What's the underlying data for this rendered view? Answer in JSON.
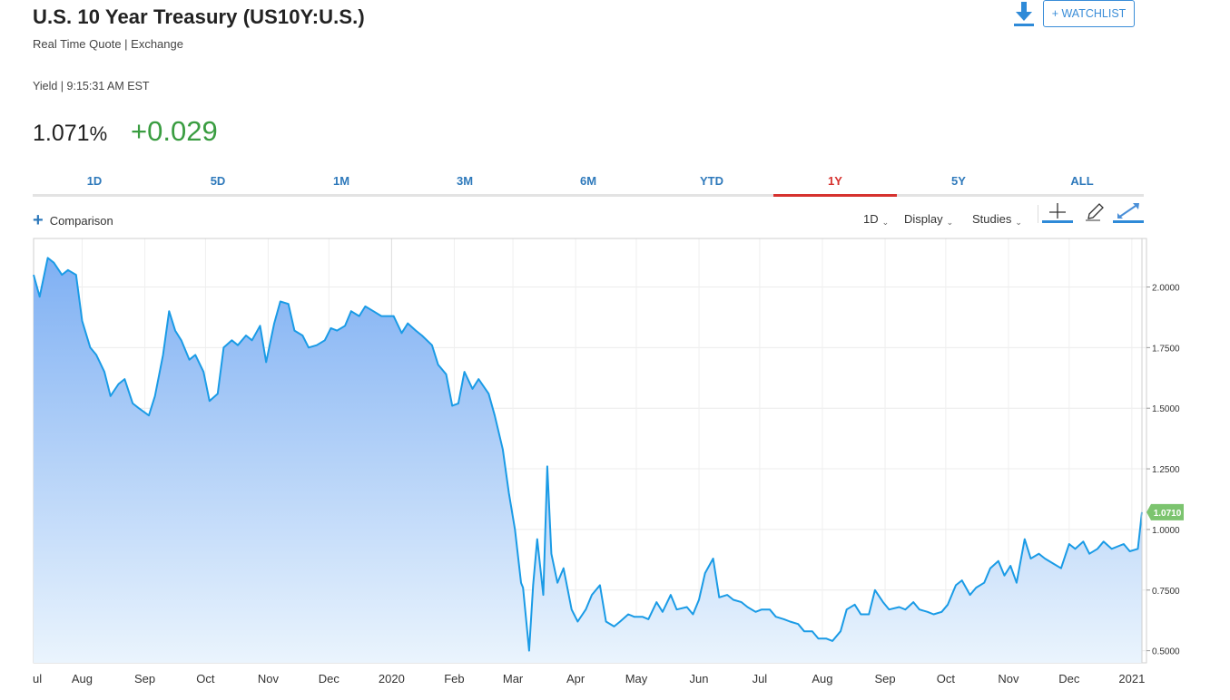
{
  "header": {
    "title": "U.S. 10 Year Treasury (US10Y:U.S.)",
    "subtitle": "Real Time Quote | Exchange",
    "yield_time": "Yield | 9:15:31 AM EST",
    "price": "1.071",
    "price_unit": "%",
    "change": "+0.029",
    "watchlist_label": "+ WATCHLIST",
    "download_icon": "download-icon"
  },
  "tabs": [
    {
      "label": "1D",
      "active": false
    },
    {
      "label": "5D",
      "active": false
    },
    {
      "label": "1M",
      "active": false
    },
    {
      "label": "3M",
      "active": false
    },
    {
      "label": "6M",
      "active": false
    },
    {
      "label": "YTD",
      "active": false
    },
    {
      "label": "1Y",
      "active": true
    },
    {
      "label": "5Y",
      "active": false
    },
    {
      "label": "ALL",
      "active": false
    }
  ],
  "toolbar": {
    "comparison_label": "Comparison",
    "interval_label": "1D",
    "display_label": "Display",
    "studies_label": "Studies",
    "crosshair_icon": "crosshair-icon",
    "draw_icon": "pencil-icon",
    "expand_icon": "expand-icon"
  },
  "colors": {
    "line": "#1a9be6",
    "area_top": "#7fb0f3",
    "area_bottom": "#eaf4fd",
    "last_price_badge": "#7cc46f",
    "change_positive": "#3a9d41",
    "tab_active": "#d6322f",
    "tab_default": "#2e79bb"
  },
  "chart_data": {
    "type": "area",
    "title": "",
    "xlabel": "",
    "ylabel": "",
    "ylim": [
      0.45,
      2.2
    ],
    "y_ticks": [
      "2.0000",
      "1.7500",
      "1.5000",
      "1.2500",
      "1.0000",
      "0.7500",
      "0.5000"
    ],
    "x_tick_labels": [
      "Jul",
      "Aug",
      "Sep",
      "Oct",
      "Nov",
      "Dec",
      "2020",
      "Feb",
      "Mar",
      "Apr",
      "May",
      "Jun",
      "Jul",
      "Aug",
      "Sep",
      "Oct",
      "Nov",
      "Dec",
      "2021"
    ],
    "grid": true,
    "last_price_label": "1.0710",
    "series": [
      {
        "name": "US10Y",
        "x": [
          "2019-07-08",
          "2019-07-11",
          "2019-07-15",
          "2019-07-18",
          "2019-07-22",
          "2019-07-25",
          "2019-07-29",
          "2019-08-01",
          "2019-08-05",
          "2019-08-08",
          "2019-08-12",
          "2019-08-15",
          "2019-08-19",
          "2019-08-22",
          "2019-08-26",
          "2019-08-29",
          "2019-09-03",
          "2019-09-06",
          "2019-09-10",
          "2019-09-13",
          "2019-09-16",
          "2019-09-19",
          "2019-09-23",
          "2019-09-26",
          "2019-09-30",
          "2019-10-03",
          "2019-10-07",
          "2019-10-10",
          "2019-10-14",
          "2019-10-17",
          "2019-10-21",
          "2019-10-24",
          "2019-10-28",
          "2019-10-31",
          "2019-11-04",
          "2019-11-07",
          "2019-11-11",
          "2019-11-14",
          "2019-11-18",
          "2019-11-21",
          "2019-11-25",
          "2019-11-29",
          "2019-12-02",
          "2019-12-05",
          "2019-12-09",
          "2019-12-12",
          "2019-12-16",
          "2019-12-19",
          "2019-12-23",
          "2019-12-27",
          "2020-01-02",
          "2020-01-06",
          "2020-01-09",
          "2020-01-13",
          "2020-01-16",
          "2020-01-21",
          "2020-01-24",
          "2020-01-28",
          "2020-01-31",
          "2020-02-03",
          "2020-02-06",
          "2020-02-10",
          "2020-02-13",
          "2020-02-18",
          "2020-02-21",
          "2020-02-25",
          "2020-02-28",
          "2020-03-02",
          "2020-03-05",
          "2020-03-06",
          "2020-03-09",
          "2020-03-11",
          "2020-03-13",
          "2020-03-16",
          "2020-03-18",
          "2020-03-20",
          "2020-03-23",
          "2020-03-26",
          "2020-03-30",
          "2020-04-02",
          "2020-04-06",
          "2020-04-09",
          "2020-04-13",
          "2020-04-16",
          "2020-04-20",
          "2020-04-23",
          "2020-04-27",
          "2020-04-30",
          "2020-05-04",
          "2020-05-07",
          "2020-05-11",
          "2020-05-14",
          "2020-05-18",
          "2020-05-21",
          "2020-05-26",
          "2020-05-29",
          "2020-06-01",
          "2020-06-04",
          "2020-06-08",
          "2020-06-11",
          "2020-06-15",
          "2020-06-18",
          "2020-06-22",
          "2020-06-25",
          "2020-06-29",
          "2020-07-02",
          "2020-07-06",
          "2020-07-09",
          "2020-07-13",
          "2020-07-16",
          "2020-07-20",
          "2020-07-23",
          "2020-07-27",
          "2020-07-30",
          "2020-08-03",
          "2020-08-06",
          "2020-08-10",
          "2020-08-13",
          "2020-08-17",
          "2020-08-20",
          "2020-08-24",
          "2020-08-27",
          "2020-08-31",
          "2020-09-03",
          "2020-09-08",
          "2020-09-11",
          "2020-09-15",
          "2020-09-18",
          "2020-09-22",
          "2020-09-25",
          "2020-09-29",
          "2020-10-02",
          "2020-10-06",
          "2020-10-09",
          "2020-10-13",
          "2020-10-16",
          "2020-10-20",
          "2020-10-23",
          "2020-10-27",
          "2020-10-30",
          "2020-11-02",
          "2020-11-05",
          "2020-11-09",
          "2020-11-12",
          "2020-11-16",
          "2020-11-19",
          "2020-11-23",
          "2020-11-27",
          "2020-12-01",
          "2020-12-04",
          "2020-12-08",
          "2020-12-11",
          "2020-12-15",
          "2020-12-18",
          "2020-12-22",
          "2020-12-28",
          "2020-12-31",
          "2021-01-04",
          "2021-01-06"
        ],
        "y": [
          2.05,
          1.96,
          2.12,
          2.1,
          2.05,
          2.07,
          2.05,
          1.86,
          1.75,
          1.72,
          1.65,
          1.55,
          1.6,
          1.62,
          1.52,
          1.5,
          1.47,
          1.55,
          1.72,
          1.9,
          1.82,
          1.78,
          1.7,
          1.72,
          1.65,
          1.53,
          1.56,
          1.75,
          1.78,
          1.76,
          1.8,
          1.78,
          1.84,
          1.69,
          1.85,
          1.94,
          1.93,
          1.82,
          1.8,
          1.75,
          1.76,
          1.78,
          1.83,
          1.82,
          1.84,
          1.9,
          1.88,
          1.92,
          1.9,
          1.88,
          1.88,
          1.81,
          1.85,
          1.82,
          1.8,
          1.76,
          1.68,
          1.64,
          1.51,
          1.52,
          1.65,
          1.58,
          1.62,
          1.56,
          1.47,
          1.33,
          1.15,
          1.0,
          0.78,
          0.76,
          0.5,
          0.77,
          0.96,
          0.73,
          1.26,
          0.9,
          0.78,
          0.84,
          0.67,
          0.62,
          0.67,
          0.73,
          0.77,
          0.62,
          0.6,
          0.62,
          0.65,
          0.64,
          0.64,
          0.63,
          0.7,
          0.66,
          0.73,
          0.67,
          0.68,
          0.65,
          0.71,
          0.82,
          0.88,
          0.72,
          0.73,
          0.71,
          0.7,
          0.68,
          0.66,
          0.67,
          0.67,
          0.64,
          0.63,
          0.62,
          0.61,
          0.58,
          0.58,
          0.55,
          0.55,
          0.54,
          0.58,
          0.67,
          0.69,
          0.65,
          0.65,
          0.75,
          0.7,
          0.67,
          0.68,
          0.67,
          0.7,
          0.67,
          0.66,
          0.65,
          0.66,
          0.69,
          0.77,
          0.79,
          0.73,
          0.76,
          0.78,
          0.84,
          0.87,
          0.81,
          0.85,
          0.78,
          0.96,
          0.88,
          0.9,
          0.88,
          0.86,
          0.84,
          0.94,
          0.92,
          0.95,
          0.9,
          0.92,
          0.95,
          0.92,
          0.94,
          0.91,
          0.92,
          1.071
        ]
      }
    ]
  }
}
